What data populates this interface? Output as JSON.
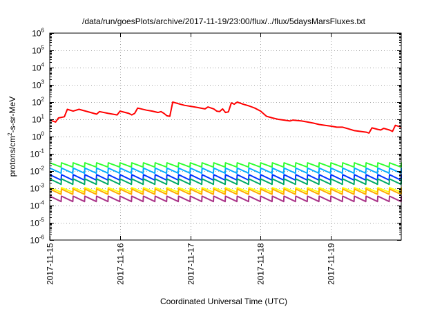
{
  "chart_data": {
    "type": "line",
    "title": "/data/run/goesPlots/archive/2017-11-19/23:00/flux/../flux/5daysMarsFluxes.txt",
    "xlabel": "Coordinated Universal Time (UTC)",
    "ylabel": {
      "base": "protons/cm",
      "sup": "2",
      "rest": "-s-sr-MeV"
    },
    "y_scale": "log",
    "ylim": [
      1e-06,
      1000000.0
    ],
    "y_ticks": [
      {
        "value": 1e-06,
        "base": "10",
        "exp": "-6"
      },
      {
        "value": 1e-05,
        "base": "10",
        "exp": "-5"
      },
      {
        "value": 0.0001,
        "base": "10",
        "exp": "-4"
      },
      {
        "value": 0.001,
        "base": "10",
        "exp": "-3"
      },
      {
        "value": 0.01,
        "base": "10",
        "exp": "-2"
      },
      {
        "value": 0.1,
        "base": "10",
        "exp": "-1"
      },
      {
        "value": 1,
        "base": "10",
        "exp": "0"
      },
      {
        "value": 10,
        "base": "10",
        "exp": "1"
      },
      {
        "value": 100,
        "base": "10",
        "exp": "2"
      },
      {
        "value": 1000,
        "base": "10",
        "exp": "3"
      },
      {
        "value": 10000,
        "base": "10",
        "exp": "4"
      },
      {
        "value": 100000,
        "base": "10",
        "exp": "5"
      },
      {
        "value": 1000000,
        "base": "10",
        "exp": "6"
      }
    ],
    "xlim": [
      "2017-11-15 00:00",
      "2017-11-20 00:00"
    ],
    "x_ticks": [
      "2017-11-15",
      "2017-11-16",
      "2017-11-17",
      "2017-11-18",
      "2017-11-19"
    ],
    "grid": true,
    "legend": "none",
    "series": [
      {
        "color": "#ff0000",
        "points": [
          [
            "2017-11-15 00:00",
            9
          ],
          [
            "2017-11-15 01:00",
            8
          ],
          [
            "2017-11-15 02:00",
            7
          ],
          [
            "2017-11-15 03:00",
            12
          ],
          [
            "2017-11-15 05:00",
            14
          ],
          [
            "2017-11-15 06:00",
            38
          ],
          [
            "2017-11-15 08:00",
            30
          ],
          [
            "2017-11-15 10:00",
            38
          ],
          [
            "2017-11-15 14:00",
            25
          ],
          [
            "2017-11-15 16:00",
            20
          ],
          [
            "2017-11-15 17:00",
            28
          ],
          [
            "2017-11-15 20:00",
            22
          ],
          [
            "2017-11-15 23:00",
            18
          ],
          [
            "2017-11-16 00:00",
            30
          ],
          [
            "2017-11-16 03:00",
            22
          ],
          [
            "2017-11-16 04:00",
            18
          ],
          [
            "2017-11-16 05:00",
            22
          ],
          [
            "2017-11-16 06:00",
            45
          ],
          [
            "2017-11-16 09:00",
            34
          ],
          [
            "2017-11-16 11:00",
            30
          ],
          [
            "2017-11-16 13:00",
            25
          ],
          [
            "2017-11-16 14:00",
            28
          ],
          [
            "2017-11-16 15:00",
            22
          ],
          [
            "2017-11-16 16:00",
            16
          ],
          [
            "2017-11-16 17:00",
            15
          ],
          [
            "2017-11-16 18:00",
            100
          ],
          [
            "2017-11-16 20:00",
            80
          ],
          [
            "2017-11-16 22:00",
            65
          ],
          [
            "2017-11-17 02:00",
            50
          ],
          [
            "2017-11-17 05:00",
            40
          ],
          [
            "2017-11-17 06:00",
            52
          ],
          [
            "2017-11-17 08:00",
            40
          ],
          [
            "2017-11-17 09:00",
            30
          ],
          [
            "2017-11-17 10:00",
            28
          ],
          [
            "2017-11-17 11:00",
            40
          ],
          [
            "2017-11-17 12:00",
            25
          ],
          [
            "2017-11-17 13:00",
            27
          ],
          [
            "2017-11-17 14:00",
            90
          ],
          [
            "2017-11-17 15:00",
            75
          ],
          [
            "2017-11-17 16:00",
            100
          ],
          [
            "2017-11-17 18:00",
            75
          ],
          [
            "2017-11-17 20:00",
            60
          ],
          [
            "2017-11-17 22:00",
            45
          ],
          [
            "2017-11-18 00:00",
            30
          ],
          [
            "2017-11-18 02:00",
            15
          ],
          [
            "2017-11-18 04:00",
            12
          ],
          [
            "2017-11-18 06:00",
            10
          ],
          [
            "2017-11-18 08:00",
            9
          ],
          [
            "2017-11-18 10:00",
            8
          ],
          [
            "2017-11-18 11:00",
            9
          ],
          [
            "2017-11-18 14:00",
            8
          ],
          [
            "2017-11-18 16:00",
            7
          ],
          [
            "2017-11-18 18:00",
            6
          ],
          [
            "2017-11-18 20:00",
            5
          ],
          [
            "2017-11-18 22:00",
            4.5
          ],
          [
            "2017-11-19 00:00",
            4
          ],
          [
            "2017-11-19 02:00",
            3.5
          ],
          [
            "2017-11-19 04:00",
            3.5
          ],
          [
            "2017-11-19 06:00",
            2.8
          ],
          [
            "2017-11-19 08:00",
            2.2
          ],
          [
            "2017-11-19 10:00",
            2
          ],
          [
            "2017-11-19 12:00",
            1.8
          ],
          [
            "2017-11-19 13:00",
            1.6
          ],
          [
            "2017-11-19 14:00",
            3.2
          ],
          [
            "2017-11-19 16:00",
            2.6
          ],
          [
            "2017-11-19 17:00",
            2.4
          ],
          [
            "2017-11-19 18:00",
            3.0
          ],
          [
            "2017-11-19 20:00",
            2.4
          ],
          [
            "2017-11-19 21:00",
            2.0
          ],
          [
            "2017-11-19 22:00",
            4.5
          ],
          [
            "2017-11-20 00:00",
            3.5
          ]
        ]
      },
      {
        "color": "#33ff33",
        "pattern": {
          "start": "2017-11-15 00:00",
          "period_hours": 4,
          "high": 0.03,
          "low": 0.017,
          "count": 31
        }
      },
      {
        "color": "#00aaff",
        "pattern": {
          "start": "2017-11-15 00:00",
          "period_hours": 4,
          "high": 0.015,
          "low": 0.0075,
          "count": 31
        }
      },
      {
        "color": "#0033ff",
        "pattern": {
          "start": "2017-11-15 00:00",
          "period_hours": 4,
          "high": 0.0062,
          "low": 0.003,
          "count": 31
        }
      },
      {
        "color": "#00aa66",
        "pattern": {
          "start": "2017-11-15 00:00",
          "period_hours": 4,
          "high": 0.0035,
          "low": 0.0017,
          "count": 31
        }
      },
      {
        "color": "#ffff00",
        "pattern": {
          "start": "2017-11-15 00:00",
          "period_hours": 4,
          "high": 0.0011,
          "low": 0.0006,
          "count": 31
        }
      },
      {
        "color": "#ffaa00",
        "pattern": {
          "start": "2017-11-15 00:00",
          "period_hours": 4,
          "high": 0.0009,
          "low": 0.00045,
          "count": 31
        }
      },
      {
        "color": "#aa3388",
        "pattern": {
          "start": "2017-11-15 00:00",
          "period_hours": 4,
          "high": 0.00035,
          "low": 0.00017,
          "count": 31
        }
      }
    ]
  }
}
